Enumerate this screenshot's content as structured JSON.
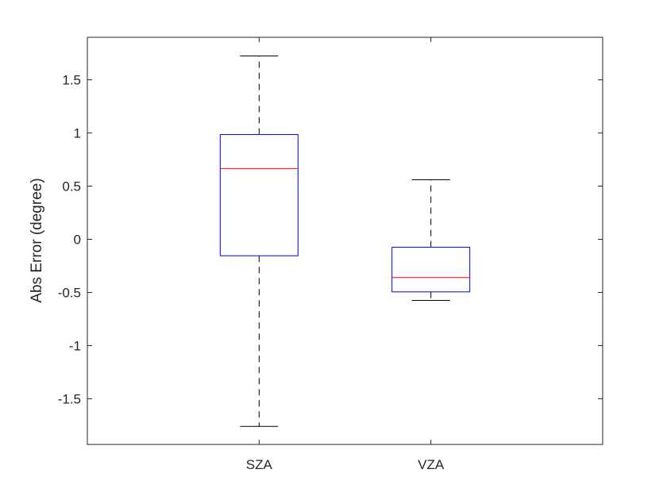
{
  "chart_data": {
    "type": "box",
    "title": "",
    "xlabel": "",
    "ylabel": "Abs Error (degree)",
    "ylim": [
      -1.93,
      1.9
    ],
    "yticks": [
      -1.5,
      -1,
      -0.5,
      0,
      0.5,
      1,
      1.5
    ],
    "ytick_labels": [
      "-1.5",
      "-1",
      "-0.5",
      "0",
      "0.5",
      "1",
      "1.5"
    ],
    "grid": false,
    "categories": [
      "SZA",
      "VZA"
    ],
    "boxes": [
      {
        "category": "SZA",
        "whisker_low": -1.76,
        "q1": -0.155,
        "median": 0.665,
        "q3": 0.985,
        "whisker_high": 1.725
      },
      {
        "category": "VZA",
        "whisker_low": -0.575,
        "q1": -0.495,
        "median": -0.36,
        "q3": -0.075,
        "whisker_high": 0.56
      }
    ],
    "colors": {
      "box": "#0000ff",
      "median": "#ff0000",
      "whisker": "#000000",
      "axes": "#262626"
    }
  }
}
